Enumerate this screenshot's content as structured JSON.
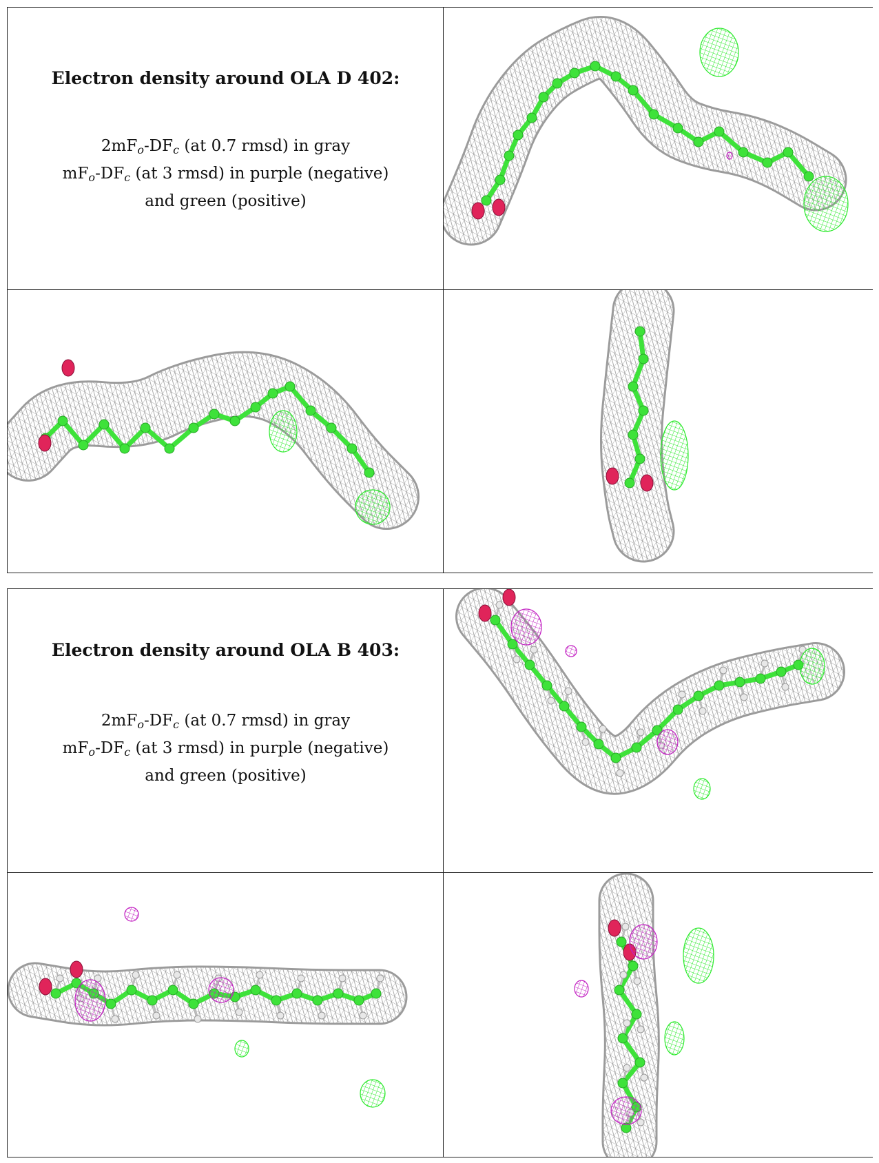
{
  "colors": {
    "gray_mesh": "#8a8a8a",
    "carbon_green": "#3ee23a",
    "positive_green": "#2bea2b",
    "negative_purple": "#c21fc2",
    "oxygen_red": "#e0245a",
    "hydrogen_white": "#e8e8e8"
  },
  "panels": [
    {
      "title": "Electron density around OLA D 402:",
      "lines": [
        {
          "a": "2mF",
          "s1": "o",
          "b": "-DF",
          "s2": "c",
          "c": " (at 0.7 rmsd) in gray"
        },
        {
          "a": "mF",
          "s1": "o",
          "b": "-DF",
          "s2": "c",
          "c": " (at 3 rmsd) in purple (negative)"
        },
        {
          "a": "and green (positive)",
          "s1": "",
          "b": "",
          "s2": "",
          "c": ""
        }
      ]
    },
    {
      "title": "Electron density around OLA B 403:",
      "lines": [
        {
          "a": "2mF",
          "s1": "o",
          "b": "-DF",
          "s2": "c",
          "c": " (at 0.7 rmsd) in gray"
        },
        {
          "a": "mF",
          "s1": "o",
          "b": "-DF",
          "s2": "c",
          "c": " (at 3 rmsd) in purple (negative)"
        },
        {
          "a": "and green (positive)",
          "s1": "",
          "b": "",
          "s2": "",
          "c": ""
        }
      ]
    }
  ]
}
